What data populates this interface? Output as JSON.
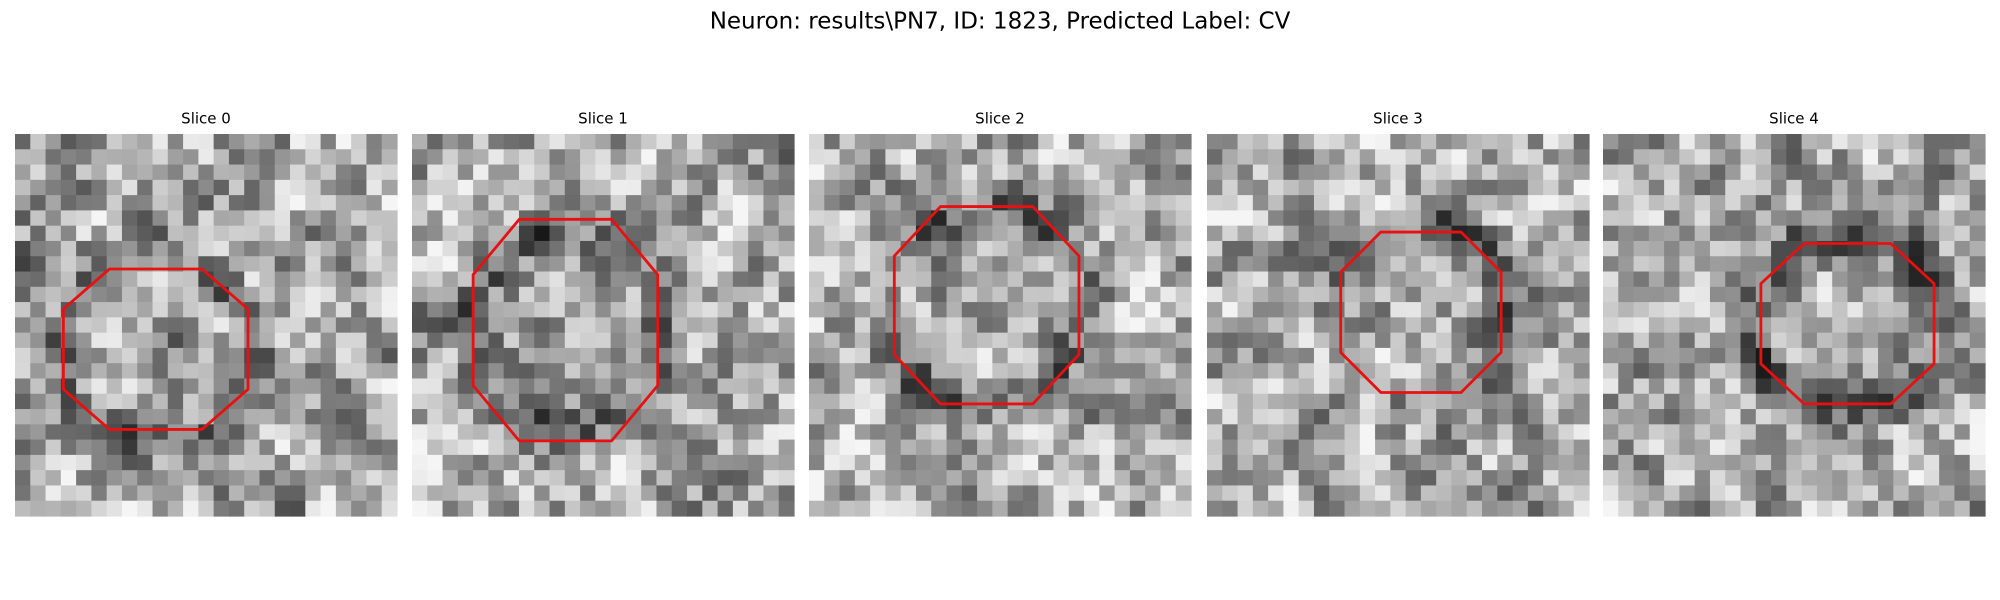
{
  "title": "Neuron: results\\PN7, ID: 1823, Predicted Label: CV",
  "panels": [
    {
      "title": "Slice 0"
    },
    {
      "title": "Slice 1"
    },
    {
      "title": "Slice 2"
    },
    {
      "title": "Slice 3"
    },
    {
      "title": "Slice 4"
    }
  ]
}
